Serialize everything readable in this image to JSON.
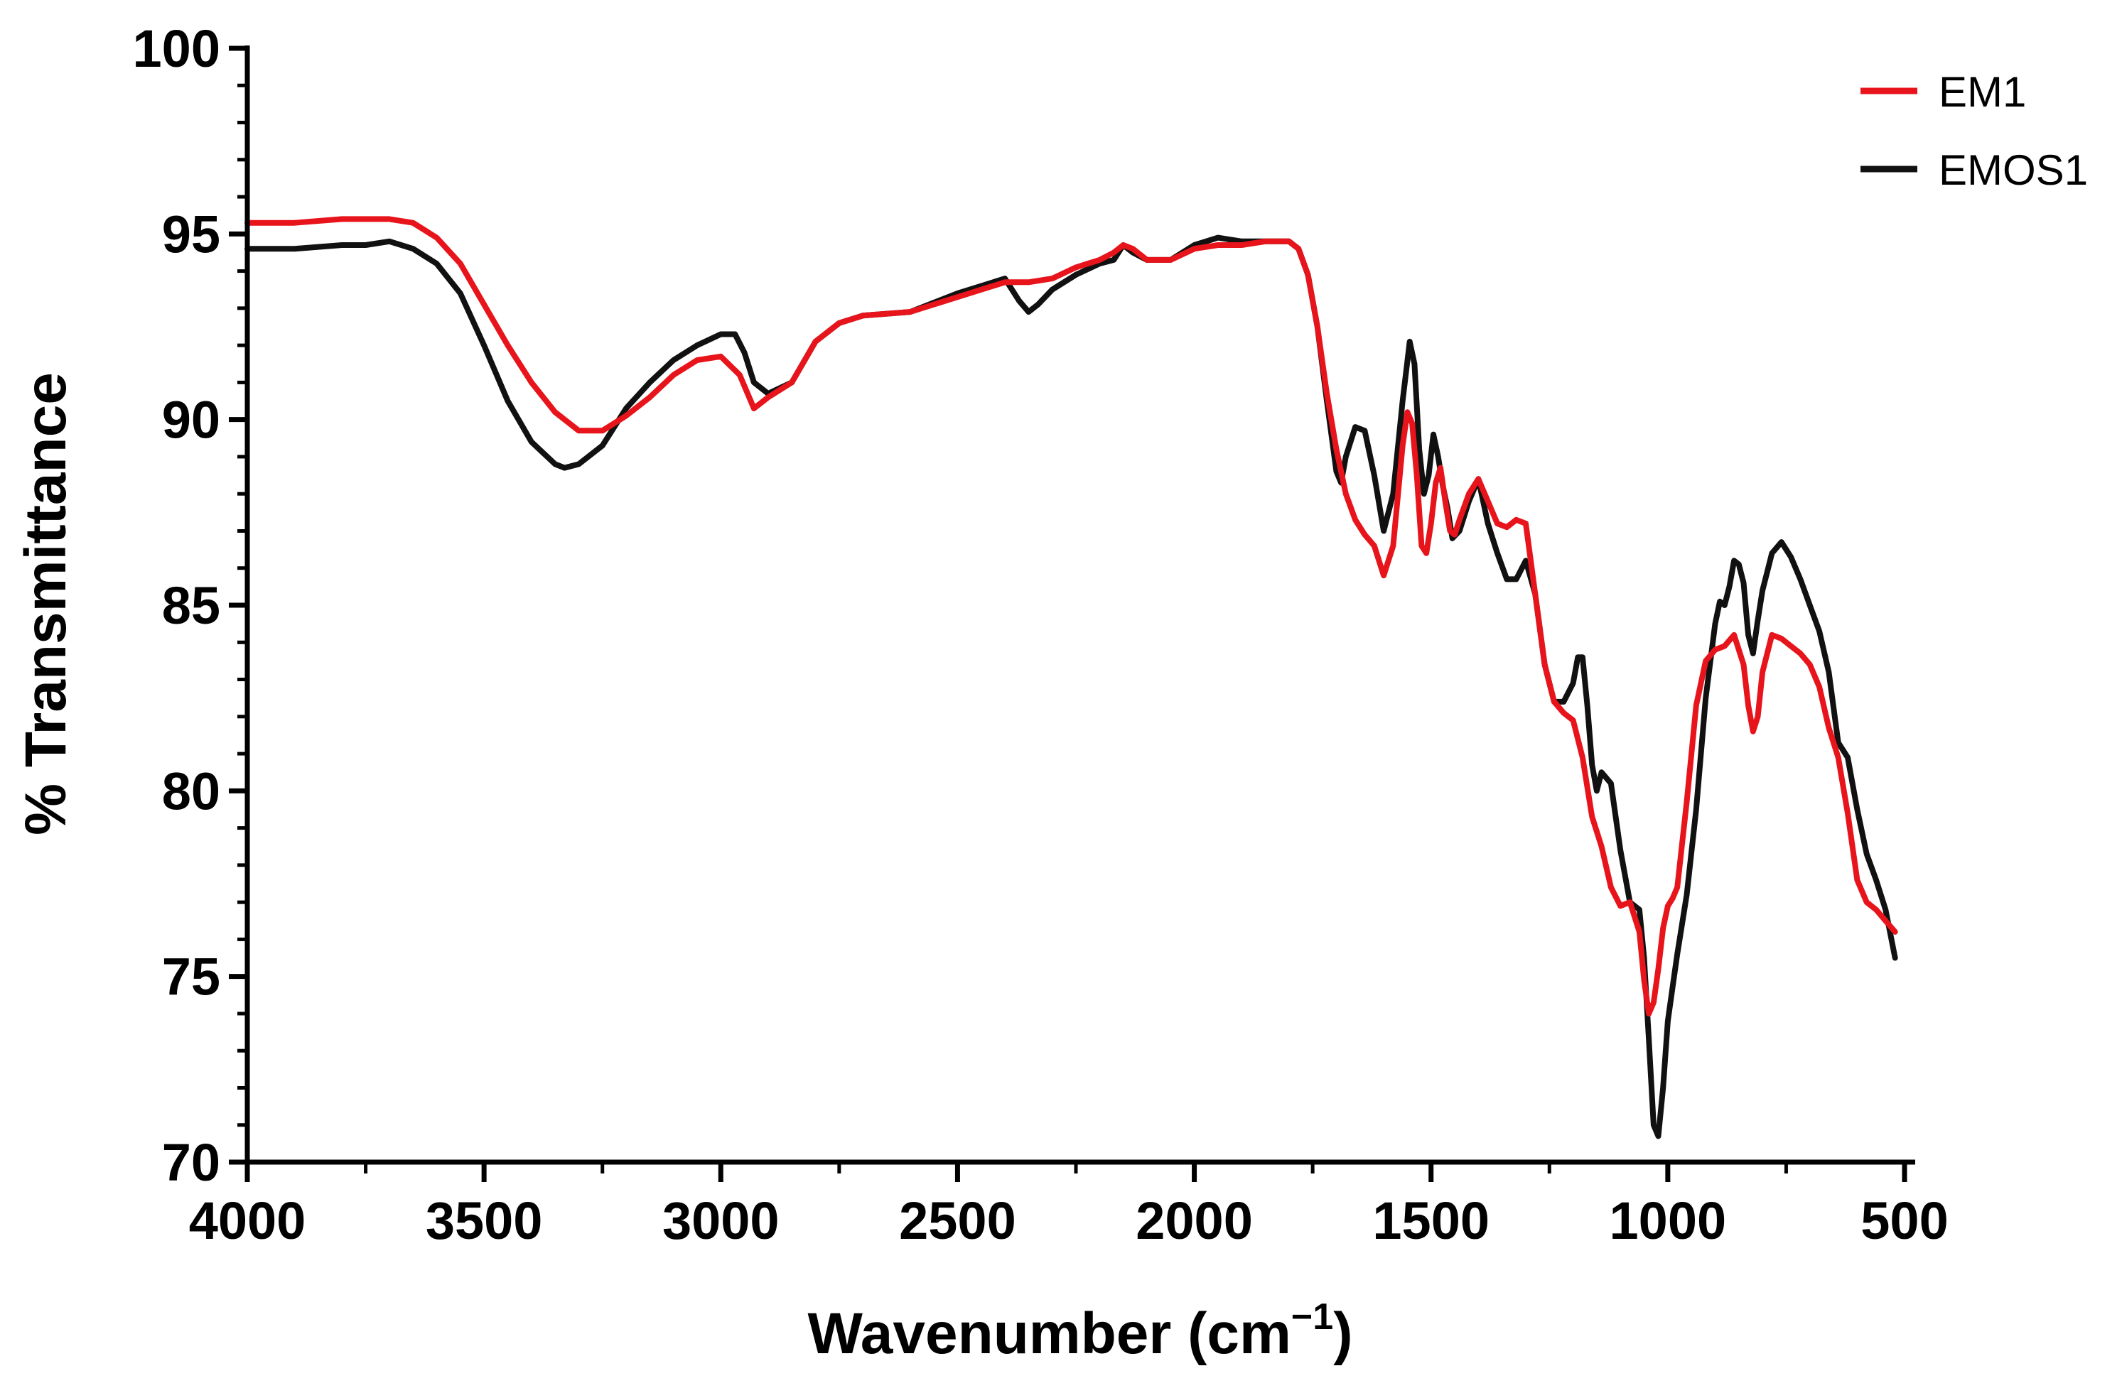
{
  "chart_data": {
    "type": "line",
    "title": "",
    "xlabel": "Wavenumber (cm",
    "xlabel_superscript": "−1",
    "xlabel_close": ")",
    "ylabel": "% Transmittance",
    "xlim": [
      4000,
      500
    ],
    "ylim": [
      70,
      100
    ],
    "x_reversed": true,
    "x_ticks": [
      4000,
      3500,
      3000,
      2500,
      2000,
      1500,
      1000,
      500
    ],
    "y_ticks": [
      70,
      75,
      80,
      85,
      90,
      95,
      100
    ],
    "grid": false,
    "legend_position": "top-right",
    "series": [
      {
        "name": "EM1",
        "color": "#e8141b",
        "x": [
          4000,
          3900,
          3800,
          3700,
          3650,
          3600,
          3550,
          3500,
          3450,
          3400,
          3350,
          3300,
          3250,
          3200,
          3150,
          3100,
          3050,
          3000,
          2960,
          2930,
          2900,
          2850,
          2800,
          2750,
          2700,
          2600,
          2500,
          2400,
          2350,
          2300,
          2250,
          2200,
          2170,
          2150,
          2130,
          2100,
          2050,
          2000,
          1950,
          1900,
          1850,
          1800,
          1780,
          1760,
          1740,
          1720,
          1700,
          1680,
          1660,
          1640,
          1620,
          1600,
          1580,
          1560,
          1550,
          1540,
          1530,
          1520,
          1510,
          1500,
          1490,
          1480,
          1470,
          1460,
          1450,
          1440,
          1420,
          1400,
          1380,
          1360,
          1340,
          1320,
          1300,
          1280,
          1260,
          1240,
          1220,
          1200,
          1180,
          1160,
          1140,
          1120,
          1100,
          1080,
          1060,
          1050,
          1040,
          1030,
          1020,
          1010,
          1000,
          990,
          980,
          960,
          940,
          920,
          900,
          880,
          860,
          840,
          830,
          820,
          810,
          800,
          780,
          760,
          740,
          720,
          700,
          680,
          660,
          640,
          620,
          600,
          580,
          560,
          540,
          520
        ],
        "y": [
          95.3,
          95.3,
          95.4,
          95.4,
          95.3,
          94.9,
          94.2,
          93.1,
          92.0,
          91.0,
          90.2,
          89.7,
          89.7,
          90.1,
          90.6,
          91.2,
          91.6,
          91.7,
          91.2,
          90.3,
          90.6,
          91.0,
          92.1,
          92.6,
          92.8,
          92.9,
          93.3,
          93.7,
          93.7,
          93.8,
          94.1,
          94.3,
          94.5,
          94.7,
          94.6,
          94.3,
          94.3,
          94.6,
          94.7,
          94.7,
          94.8,
          94.8,
          94.6,
          93.9,
          92.5,
          90.7,
          89.2,
          88.0,
          87.3,
          86.9,
          86.6,
          85.8,
          86.6,
          89.3,
          90.2,
          89.9,
          88.5,
          86.6,
          86.4,
          87.2,
          88.3,
          88.7,
          87.8,
          87.0,
          86.9,
          87.3,
          88.0,
          88.4,
          87.8,
          87.2,
          87.1,
          87.3,
          87.2,
          85.3,
          83.4,
          82.4,
          82.1,
          81.9,
          80.9,
          79.3,
          78.5,
          77.4,
          76.9,
          77.0,
          76.2,
          74.9,
          74.0,
          74.3,
          75.2,
          76.3,
          76.9,
          77.1,
          77.4,
          79.7,
          82.3,
          83.5,
          83.8,
          83.9,
          84.2,
          83.4,
          82.3,
          81.6,
          82.0,
          83.2,
          84.2,
          84.1,
          83.9,
          83.7,
          83.4,
          82.8,
          81.7,
          80.9,
          79.4,
          77.6,
          77.0,
          76.8,
          76.5,
          76.2
        ]
      },
      {
        "name": "EMOS1",
        "color": "#111111",
        "x": [
          4000,
          3900,
          3800,
          3750,
          3700,
          3650,
          3600,
          3550,
          3500,
          3450,
          3400,
          3350,
          3330,
          3300,
          3250,
          3200,
          3150,
          3100,
          3050,
          3000,
          2970,
          2950,
          2930,
          2900,
          2850,
          2800,
          2750,
          2700,
          2600,
          2500,
          2400,
          2370,
          2350,
          2330,
          2300,
          2250,
          2200,
          2170,
          2150,
          2130,
          2100,
          2050,
          2000,
          1950,
          1900,
          1850,
          1800,
          1780,
          1760,
          1740,
          1720,
          1700,
          1690,
          1680,
          1660,
          1640,
          1620,
          1600,
          1580,
          1560,
          1545,
          1535,
          1525,
          1515,
          1505,
          1495,
          1485,
          1475,
          1465,
          1455,
          1440,
          1420,
          1400,
          1380,
          1360,
          1340,
          1320,
          1300,
          1280,
          1260,
          1240,
          1220,
          1200,
          1190,
          1180,
          1170,
          1160,
          1150,
          1140,
          1120,
          1100,
          1080,
          1060,
          1050,
          1040,
          1030,
          1020,
          1010,
          1000,
          990,
          980,
          960,
          940,
          920,
          900,
          890,
          880,
          870,
          860,
          850,
          840,
          830,
          820,
          810,
          800,
          790,
          780,
          760,
          740,
          720,
          700,
          680,
          660,
          640,
          620,
          600,
          580,
          560,
          540,
          520
        ],
        "y": [
          94.6,
          94.6,
          94.7,
          94.7,
          94.8,
          94.6,
          94.2,
          93.4,
          92.0,
          90.5,
          89.4,
          88.8,
          88.7,
          88.8,
          89.3,
          90.3,
          91.0,
          91.6,
          92.0,
          92.3,
          92.3,
          91.8,
          91.0,
          90.7,
          91.0,
          92.1,
          92.6,
          92.8,
          92.9,
          93.4,
          93.8,
          93.2,
          92.9,
          93.1,
          93.5,
          93.9,
          94.2,
          94.3,
          94.7,
          94.5,
          94.3,
          94.3,
          94.7,
          94.9,
          94.8,
          94.8,
          94.8,
          94.6,
          93.9,
          92.5,
          90.5,
          88.6,
          88.3,
          89.0,
          89.8,
          89.7,
          88.5,
          87.0,
          88.0,
          90.5,
          92.1,
          91.5,
          89.2,
          88.0,
          88.5,
          89.6,
          89.0,
          88.2,
          87.6,
          86.8,
          87.0,
          87.8,
          88.4,
          87.2,
          86.4,
          85.7,
          85.7,
          86.2,
          85.3,
          83.4,
          82.4,
          82.4,
          82.9,
          83.6,
          83.6,
          82.3,
          80.7,
          80.0,
          80.5,
          80.2,
          78.4,
          77.0,
          76.8,
          75.5,
          73.3,
          71.0,
          70.7,
          72.0,
          73.8,
          74.7,
          75.6,
          77.2,
          79.5,
          82.5,
          84.5,
          85.1,
          85.0,
          85.5,
          86.2,
          86.1,
          85.6,
          84.2,
          83.7,
          84.6,
          85.4,
          85.9,
          86.4,
          86.7,
          86.3,
          85.7,
          85.0,
          84.3,
          83.2,
          81.3,
          80.9,
          79.5,
          78.3,
          77.6,
          76.8,
          75.5
        ]
      }
    ]
  }
}
